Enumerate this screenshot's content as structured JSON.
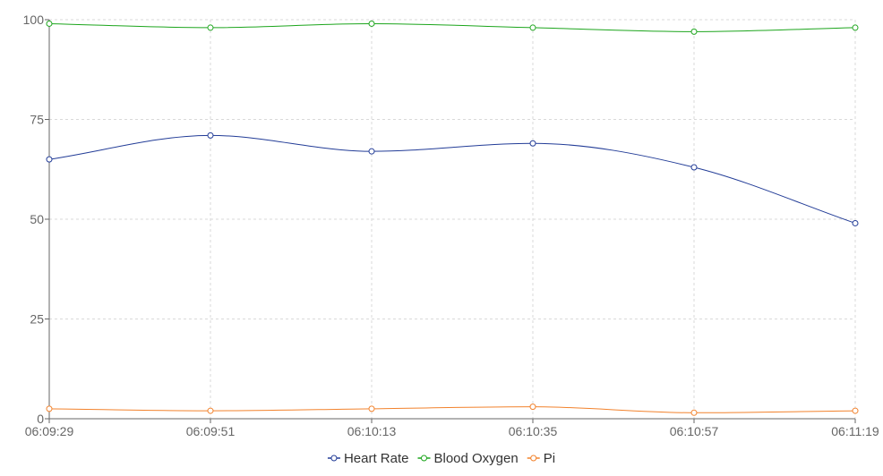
{
  "chart_data": {
    "type": "line",
    "x": [
      "06:09:29",
      "06:09:51",
      "06:10:13",
      "06:10:35",
      "06:10:57",
      "06:11:19"
    ],
    "ylim": [
      0,
      100
    ],
    "yticks": [
      "0",
      "25",
      "50",
      "75",
      "100"
    ],
    "grid": true,
    "legend_position": "bottom-center",
    "series": [
      {
        "name": "Heart Rate",
        "color": "#223c97",
        "values": [
          65,
          71,
          67,
          69,
          63,
          49
        ]
      },
      {
        "name": "Blood Oxygen",
        "color": "#1ca51c",
        "values": [
          99,
          98,
          99,
          98,
          97,
          98
        ]
      },
      {
        "name": "Pi",
        "color": "#f2822c",
        "values": [
          2.5,
          2.0,
          2.5,
          3.0,
          1.5,
          2.0
        ]
      }
    ]
  }
}
